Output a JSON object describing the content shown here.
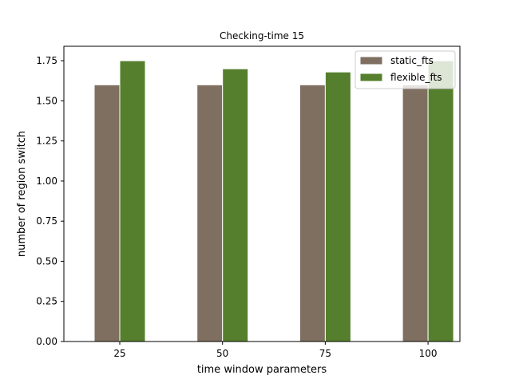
{
  "chart_data": {
    "type": "bar",
    "title": "Checking-time 15",
    "xlabel": "time window parameters",
    "ylabel": "number of region switch",
    "categories": [
      "25",
      "50",
      "75",
      "100"
    ],
    "series": [
      {
        "name": "static_fts",
        "color": "#7f6f60",
        "values": [
          1.6,
          1.6,
          1.6,
          1.6
        ]
      },
      {
        "name": "flexible_fts",
        "color": "#557f2d",
        "values": [
          1.75,
          1.7,
          1.68,
          1.75
        ]
      }
    ],
    "ylim": [
      0,
      1.84
    ],
    "yticks": [
      0.0,
      0.25,
      0.5,
      0.75,
      1.0,
      1.25,
      1.5,
      1.75
    ],
    "ytick_labels": [
      "0.00",
      "0.25",
      "0.50",
      "0.75",
      "1.00",
      "1.25",
      "1.50",
      "1.75"
    ],
    "grid": false,
    "legend_position": "top-right"
  }
}
